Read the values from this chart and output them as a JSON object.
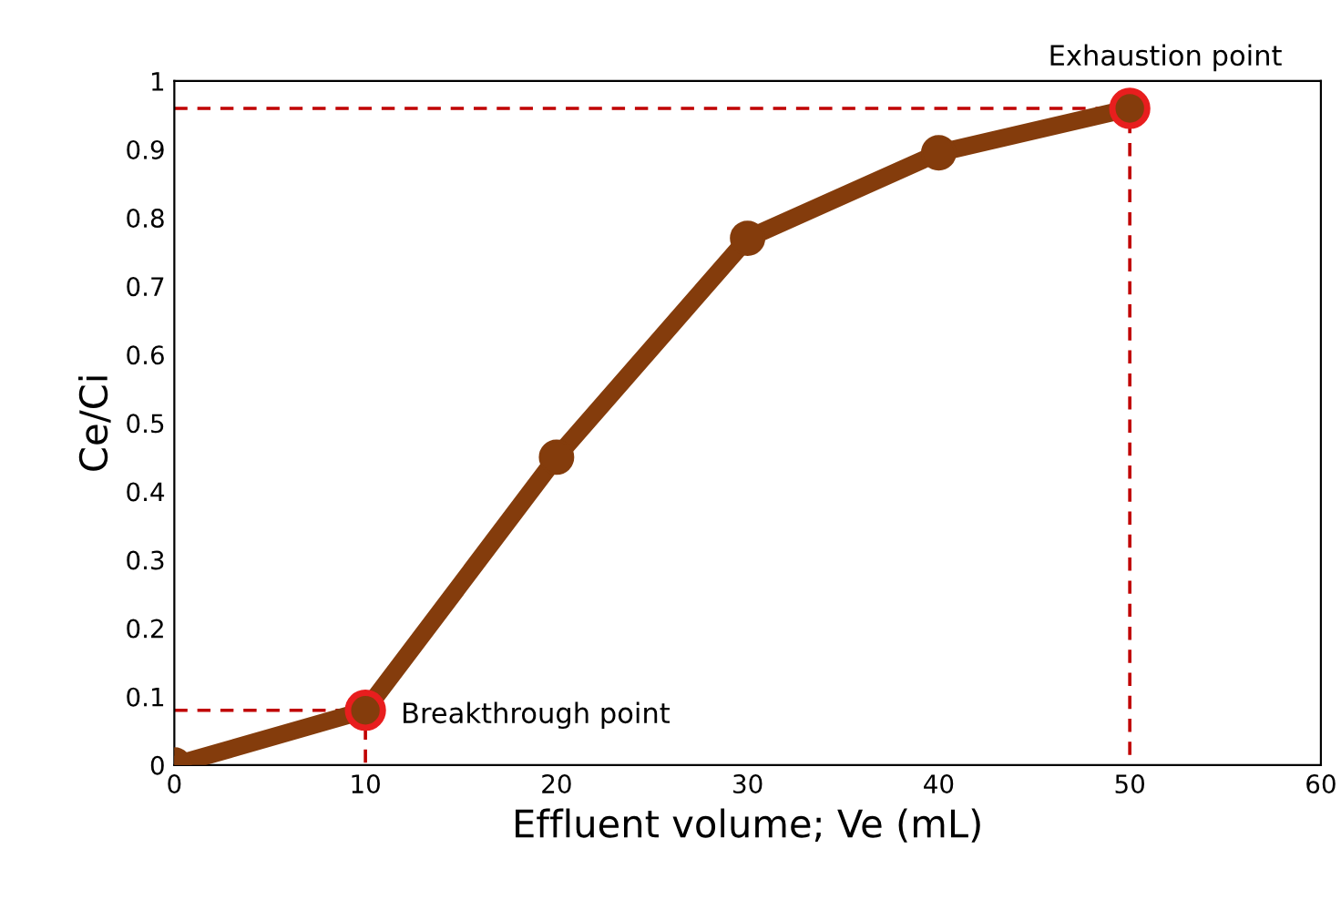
{
  "chart_data": {
    "type": "line",
    "xlabel": "Effluent volume; Ve (mL)",
    "ylabel": "Ce/Ci",
    "x": [
      0,
      10,
      20,
      30,
      40,
      50
    ],
    "series": [
      {
        "color": "#c00000",
        "line_style": "dashed",
        "marker": "none",
        "x": [
          0,
          10,
          10
        ],
        "values": [
          0.08,
          0.08,
          0
        ]
      },
      {
        "color": "#c00000",
        "line_style": "dashed",
        "marker": "none",
        "x": [
          0,
          50,
          50
        ],
        "values": [
          0.96,
          0.96,
          0
        ]
      },
      {
        "color": "#843c0c",
        "marker": "circle",
        "values": [
          0,
          0.08,
          0.45,
          0.77,
          0.895,
          0.96
        ]
      },
      {
        "type": "scatter",
        "color": "#e81e1e",
        "marker": "circle",
        "x": [
          10,
          50
        ],
        "values": [
          0.08,
          0.96
        ]
      }
    ],
    "annotations": [
      {
        "text": "Breakthrough point",
        "x": 10,
        "y": 0.08
      },
      {
        "text": "Exhaustion point",
        "x": 50,
        "y": 0.96
      }
    ],
    "xlim": [
      0,
      60
    ],
    "xticks": [
      0,
      10,
      20,
      30,
      40,
      50,
      60
    ],
    "ylim": [
      0,
      1
    ],
    "yticks": [
      0,
      0.1,
      0.2,
      0.3,
      0.4,
      0.5,
      0.6,
      0.7,
      0.8,
      0.9,
      1
    ],
    "grid": false,
    "legend": false
  }
}
